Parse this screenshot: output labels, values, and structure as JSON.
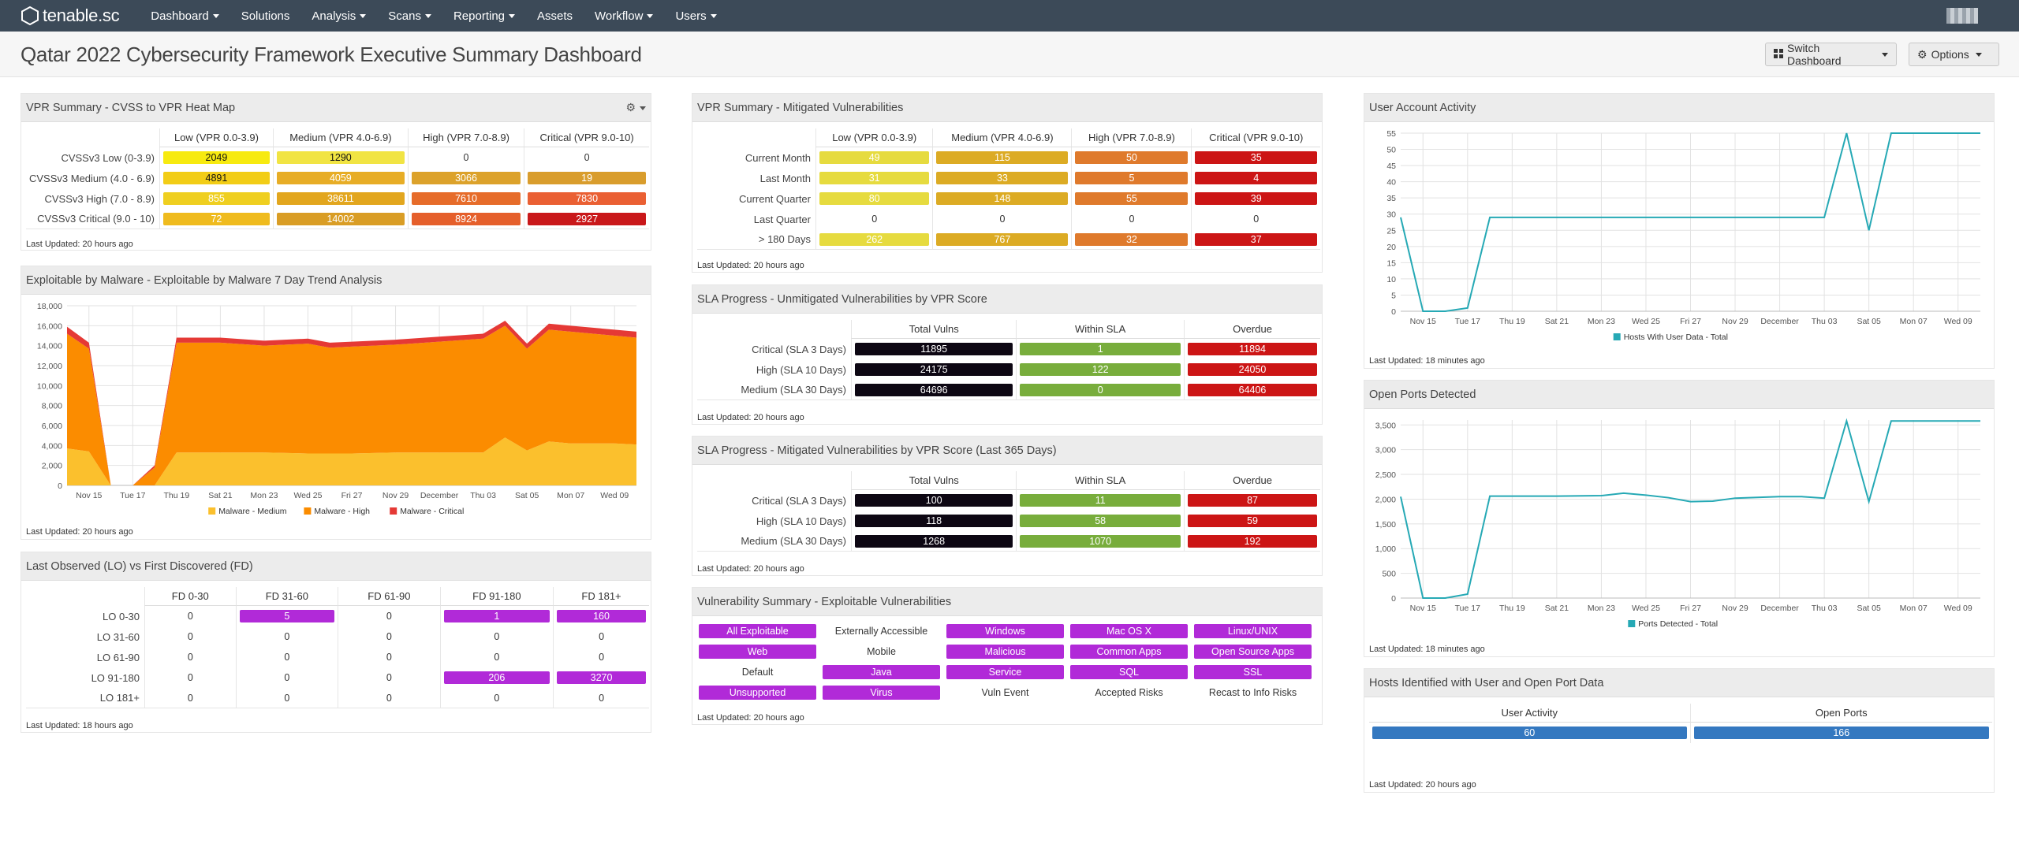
{
  "nav": {
    "logo_text": "tenable.sc",
    "items": [
      {
        "label": "Dashboard",
        "caret": true
      },
      {
        "label": "Solutions",
        "caret": false
      },
      {
        "label": "Analysis",
        "caret": true
      },
      {
        "label": "Scans",
        "caret": true
      },
      {
        "label": "Reporting",
        "caret": true
      },
      {
        "label": "Assets",
        "caret": false
      },
      {
        "label": "Workflow",
        "caret": true
      },
      {
        "label": "Users",
        "caret": true
      }
    ]
  },
  "header": {
    "title": "Qatar 2022 Cybersecurity Framework Executive Summary Dashboard",
    "switch_label": "Switch Dashboard",
    "options_label": "Options"
  },
  "heatmap": {
    "title": "VPR Summary - CVSS to VPR Heat Map",
    "columns": [
      "Low (VPR 0.0-3.9)",
      "Medium (VPR 4.0-6.9)",
      "High (VPR 7.0-8.9)",
      "Critical (VPR 9.0-10)"
    ],
    "rows": [
      {
        "label": "CVSSv3 Low (0-3.9)",
        "values": [
          "2049",
          "1290",
          "0",
          "0"
        ],
        "colors": [
          "#f7ea10",
          "#f1e443",
          "#ffffff",
          "#ffffff"
        ]
      },
      {
        "label": "CVSSv3 Medium (4.0 - 6.9)",
        "values": [
          "4891",
          "4059",
          "3066",
          "19"
        ],
        "colors": [
          "#f2cd16",
          "#e7ad26",
          "#dca22b",
          "#d99d2d"
        ]
      },
      {
        "label": "CVSSv3 High (7.0 - 8.9)",
        "values": [
          "855",
          "38611",
          "7610",
          "7830"
        ],
        "colors": [
          "#efcf20",
          "#e2a61e",
          "#e66c2a",
          "#ea6033"
        ]
      },
      {
        "label": "CVSSv3 Critical (9.0 - 10)",
        "values": [
          "72",
          "14002",
          "8924",
          "2927"
        ],
        "colors": [
          "#efbb1e",
          "#d99d25",
          "#e55f2b",
          "#c9181a"
        ]
      }
    ],
    "updated": "Last Updated: 20 hours ago"
  },
  "malware": {
    "title": "Exploitable by Malware - Exploitable by Malware 7 Day Trend Analysis",
    "updated": "Last Updated: 20 hours ago"
  },
  "lofd": {
    "title": "Last Observed (LO) vs First Discovered (FD)",
    "columns": [
      "FD 0-30",
      "FD 31-60",
      "FD 61-90",
      "FD 91-180",
      "FD 181+"
    ],
    "rows": [
      {
        "label": "LO 0-30",
        "values": [
          "0",
          "5",
          "0",
          "1",
          "160"
        ]
      },
      {
        "label": "LO 31-60",
        "values": [
          "0",
          "0",
          "0",
          "0",
          "0"
        ]
      },
      {
        "label": "LO 61-90",
        "values": [
          "0",
          "0",
          "0",
          "0",
          "0"
        ]
      },
      {
        "label": "LO 91-180",
        "values": [
          "0",
          "0",
          "0",
          "206",
          "3270"
        ]
      },
      {
        "label": "LO 181+",
        "values": [
          "0",
          "0",
          "0",
          "0",
          "0"
        ]
      }
    ],
    "highlight": "#b12ad8",
    "updated": "Last Updated: 18 hours ago"
  },
  "mitigated": {
    "title": "VPR Summary - Mitigated Vulnerabilities",
    "columns": [
      "Low (VPR 0.0-3.9)",
      "Medium (VPR 4.0-6.9)",
      "High (VPR 7.0-8.9)",
      "Critical (VPR 9.0-10)"
    ],
    "colors": [
      "#e6db3f",
      "#dcab24",
      "#df7a2c",
      "#cc1515"
    ],
    "rows": [
      {
        "label": "Current Month",
        "values": [
          "49",
          "115",
          "50",
          "35"
        ]
      },
      {
        "label": "Last Month",
        "values": [
          "31",
          "33",
          "5",
          "4"
        ]
      },
      {
        "label": "Current Quarter",
        "values": [
          "80",
          "148",
          "55",
          "39"
        ]
      },
      {
        "label": "Last Quarter",
        "values": [
          "0",
          "0",
          "0",
          "0"
        ]
      },
      {
        "label": "> 180 Days",
        "values": [
          "262",
          "767",
          "32",
          "37"
        ]
      }
    ],
    "updated": "Last Updated: 20 hours ago"
  },
  "sla_unmit": {
    "title": "SLA Progress - Unmitigated Vulnerabilities by VPR Score",
    "columns": [
      "Total Vulns",
      "Within SLA",
      "Overdue"
    ],
    "colors": [
      "#0d0713",
      "#78ad3c",
      "#cc1515"
    ],
    "rows": [
      {
        "label": "Critical (SLA 3 Days)",
        "values": [
          "11895",
          "1",
          "11894"
        ]
      },
      {
        "label": "High (SLA 10 Days)",
        "values": [
          "24175",
          "122",
          "24050"
        ]
      },
      {
        "label": "Medium (SLA 30 Days)",
        "values": [
          "64696",
          "0",
          "64406"
        ]
      }
    ],
    "updated": "Last Updated: 20 hours ago"
  },
  "sla_mit": {
    "title": "SLA Progress - Mitigated Vulnerabilities by VPR Score (Last 365 Days)",
    "columns": [
      "Total Vulns",
      "Within SLA",
      "Overdue"
    ],
    "colors": [
      "#0d0713",
      "#78ad3c",
      "#cc1515"
    ],
    "rows": [
      {
        "label": "Critical (SLA 3 Days)",
        "values": [
          "100",
          "11",
          "87"
        ]
      },
      {
        "label": "High (SLA 10 Days)",
        "values": [
          "118",
          "58",
          "59"
        ]
      },
      {
        "label": "Medium (SLA 30 Days)",
        "values": [
          "1268",
          "1070",
          "192"
        ]
      }
    ],
    "updated": "Last Updated: 20 hours ago"
  },
  "vulnsum": {
    "title": "Vulnerability Summary - Exploitable Vulnerabilities",
    "chips": [
      {
        "label": "All Exploitable",
        "on": true
      },
      {
        "label": "Externally Accessible",
        "on": false
      },
      {
        "label": "Windows",
        "on": true
      },
      {
        "label": "Mac OS X",
        "on": true
      },
      {
        "label": "Linux/UNIX",
        "on": true
      },
      {
        "label": "Web",
        "on": true
      },
      {
        "label": "Mobile",
        "on": false
      },
      {
        "label": "Malicious",
        "on": true
      },
      {
        "label": "Common Apps",
        "on": true
      },
      {
        "label": "Open Source Apps",
        "on": true
      },
      {
        "label": "Default",
        "on": false
      },
      {
        "label": "Java",
        "on": true
      },
      {
        "label": "Service",
        "on": true
      },
      {
        "label": "SQL",
        "on": true
      },
      {
        "label": "SSL",
        "on": true
      },
      {
        "label": "Unsupported",
        "on": true
      },
      {
        "label": "Virus",
        "on": true
      },
      {
        "label": "Vuln Event",
        "on": false
      },
      {
        "label": "Accepted Risks",
        "on": false
      },
      {
        "label": "Recast to Info Risks",
        "on": false
      }
    ],
    "updated": "Last Updated: 20 hours ago"
  },
  "useract": {
    "title": "User Account Activity",
    "updated": "Last Updated: 18 minutes ago"
  },
  "openports": {
    "title": "Open Ports Detected",
    "updated": "Last Updated: 18 minutes ago"
  },
  "hosts": {
    "title": "Hosts Identified with User and Open Port Data",
    "columns": [
      "User Activity",
      "Open Ports"
    ],
    "values": [
      "60",
      "166"
    ],
    "color": "#3478c0",
    "updated": "Last Updated: 20 hours ago"
  },
  "chart_data": [
    {
      "type": "area",
      "title": "Exploitable by Malware - Exploitable by Malware 7 Day Trend Analysis",
      "ylim": [
        0,
        18000
      ],
      "yticks": [
        0,
        2000,
        4000,
        6000,
        8000,
        10000,
        12000,
        14000,
        16000,
        18000
      ],
      "ytick_labels": [
        "0",
        "2,000",
        "4,000",
        "6,000",
        "8,000",
        "10,000",
        "12,000",
        "14,000",
        "16,000",
        "18,000"
      ],
      "x": [
        "Nov 14",
        "Nov 15",
        "Nov 16",
        "Nov 17",
        "Nov 18",
        "Nov 19",
        "Nov 21",
        "Nov 23",
        "Nov 25",
        "Nov 26",
        "Nov 27",
        "Nov 29",
        "Dec 1",
        "Dec 3",
        "Dec 4",
        "Dec 5",
        "Dec 6",
        "Dec 7",
        "Dec 9",
        "Dec 10"
      ],
      "x_tick_labels": [
        {
          "label": "Nov 15",
          "at": "Nov 15"
        },
        {
          "label": "Tue 17",
          "at": "Nov 17"
        },
        {
          "label": "Thu 19",
          "at": "Nov 19"
        },
        {
          "label": "Sat 21",
          "at": "Nov 21"
        },
        {
          "label": "Mon 23",
          "at": "Nov 23"
        },
        {
          "label": "Wed 25",
          "at": "Nov 25"
        },
        {
          "label": "Fri 27",
          "at": "Nov 27"
        },
        {
          "label": "Nov 29",
          "at": "Nov 29"
        },
        {
          "label": "December",
          "at": "Dec 1"
        },
        {
          "label": "Thu 03",
          "at": "Dec 3"
        },
        {
          "label": "Sat 05",
          "at": "Dec 5"
        },
        {
          "label": "Mon 07",
          "at": "Dec 7"
        },
        {
          "label": "Wed 09",
          "at": "Dec 9"
        }
      ],
      "series": [
        {
          "name": "Malware - Medium",
          "color": "#fbc02d",
          "values": [
            3700,
            3400,
            0,
            0,
            0,
            3300,
            3300,
            3300,
            3200,
            3200,
            3200,
            3300,
            3300,
            3300,
            4800,
            3500,
            4400,
            4200,
            4200,
            4100
          ]
        },
        {
          "name": "Malware - High",
          "color": "#fb8c00",
          "values": [
            11500,
            10300,
            0,
            0,
            1800,
            11000,
            11000,
            10700,
            11000,
            10600,
            10700,
            10800,
            11100,
            11400,
            11200,
            10200,
            11200,
            11200,
            10800,
            10700
          ]
        },
        {
          "name": "Malware - Critical",
          "color": "#e53935",
          "values": [
            700,
            600,
            0,
            0,
            200,
            500,
            500,
            500,
            500,
            500,
            500,
            500,
            500,
            500,
            500,
            500,
            600,
            600,
            600,
            600
          ]
        }
      ]
    },
    {
      "type": "line",
      "title": "User Account Activity",
      "ylim": [
        0,
        55
      ],
      "yticks": [
        0,
        5,
        10,
        15,
        20,
        25,
        30,
        35,
        40,
        45,
        50,
        55
      ],
      "ytick_labels": [
        "0",
        "5",
        "10",
        "15",
        "20",
        "25",
        "30",
        "35",
        "40",
        "45",
        "50",
        "55"
      ],
      "x": [
        "Nov 14",
        "Nov 15",
        "Nov 16",
        "Nov 17",
        "Nov 18",
        "Nov 19",
        "Dec 3",
        "Dec 4",
        "Dec 5",
        "Dec 6",
        "Dec 10"
      ],
      "x_tick_labels": [
        {
          "label": "Nov 15",
          "at": "Nov 15"
        },
        {
          "label": "Tue 17",
          "at": "Nov 17"
        },
        {
          "label": "Thu 19",
          "at": "Nov 19"
        },
        {
          "label": "Sat 21",
          "at": "Nov 21"
        },
        {
          "label": "Mon 23",
          "at": "Nov 23"
        },
        {
          "label": "Wed 25",
          "at": "Nov 25"
        },
        {
          "label": "Fri 27",
          "at": "Nov 27"
        },
        {
          "label": "Nov 29",
          "at": "Nov 29"
        },
        {
          "label": "December",
          "at": "Dec 1"
        },
        {
          "label": "Thu 03",
          "at": "Dec 3"
        },
        {
          "label": "Sat 05",
          "at": "Dec 5"
        },
        {
          "label": "Mon 07",
          "at": "Dec 7"
        },
        {
          "label": "Wed 09",
          "at": "Dec 9"
        }
      ],
      "series": [
        {
          "name": "Hosts With User Data - Total",
          "color": "#26a9b5",
          "values": [
            29,
            0,
            0,
            1,
            29,
            29,
            29,
            55,
            25,
            55,
            55
          ]
        }
      ]
    },
    {
      "type": "line",
      "title": "Open Ports Detected",
      "ylim": [
        0,
        3600
      ],
      "yticks": [
        0,
        500,
        1000,
        1500,
        2000,
        2500,
        3000,
        3500
      ],
      "ytick_labels": [
        "0",
        "500",
        "1,000",
        "1,500",
        "2,000",
        "2,500",
        "3,000",
        "3,500"
      ],
      "x": [
        "Nov 14",
        "Nov 15",
        "Nov 16",
        "Nov 17",
        "Nov 18",
        "Nov 19",
        "Nov 21",
        "Nov 23",
        "Nov 24",
        "Nov 25",
        "Nov 26",
        "Nov 27",
        "Nov 28",
        "Nov 29",
        "Dec 1",
        "Dec 2",
        "Dec 3",
        "Dec 4",
        "Dec 5",
        "Dec 6",
        "Dec 10"
      ],
      "x_tick_labels": [
        {
          "label": "Nov 15",
          "at": "Nov 15"
        },
        {
          "label": "Tue 17",
          "at": "Nov 17"
        },
        {
          "label": "Thu 19",
          "at": "Nov 19"
        },
        {
          "label": "Sat 21",
          "at": "Nov 21"
        },
        {
          "label": "Mon 23",
          "at": "Nov 23"
        },
        {
          "label": "Wed 25",
          "at": "Nov 25"
        },
        {
          "label": "Fri 27",
          "at": "Nov 27"
        },
        {
          "label": "Nov 29",
          "at": "Nov 29"
        },
        {
          "label": "December",
          "at": "Dec 1"
        },
        {
          "label": "Thu 03",
          "at": "Dec 3"
        },
        {
          "label": "Sat 05",
          "at": "Dec 5"
        },
        {
          "label": "Mon 07",
          "at": "Dec 7"
        },
        {
          "label": "Wed 09",
          "at": "Dec 9"
        }
      ],
      "series": [
        {
          "name": "Ports Detected - Total",
          "color": "#26a9b5",
          "values": [
            2050,
            0,
            0,
            80,
            2060,
            2060,
            2060,
            2070,
            2120,
            2080,
            2030,
            1950,
            1960,
            2020,
            2050,
            2050,
            2020,
            3580,
            1950,
            3580,
            3580
          ]
        }
      ]
    }
  ]
}
